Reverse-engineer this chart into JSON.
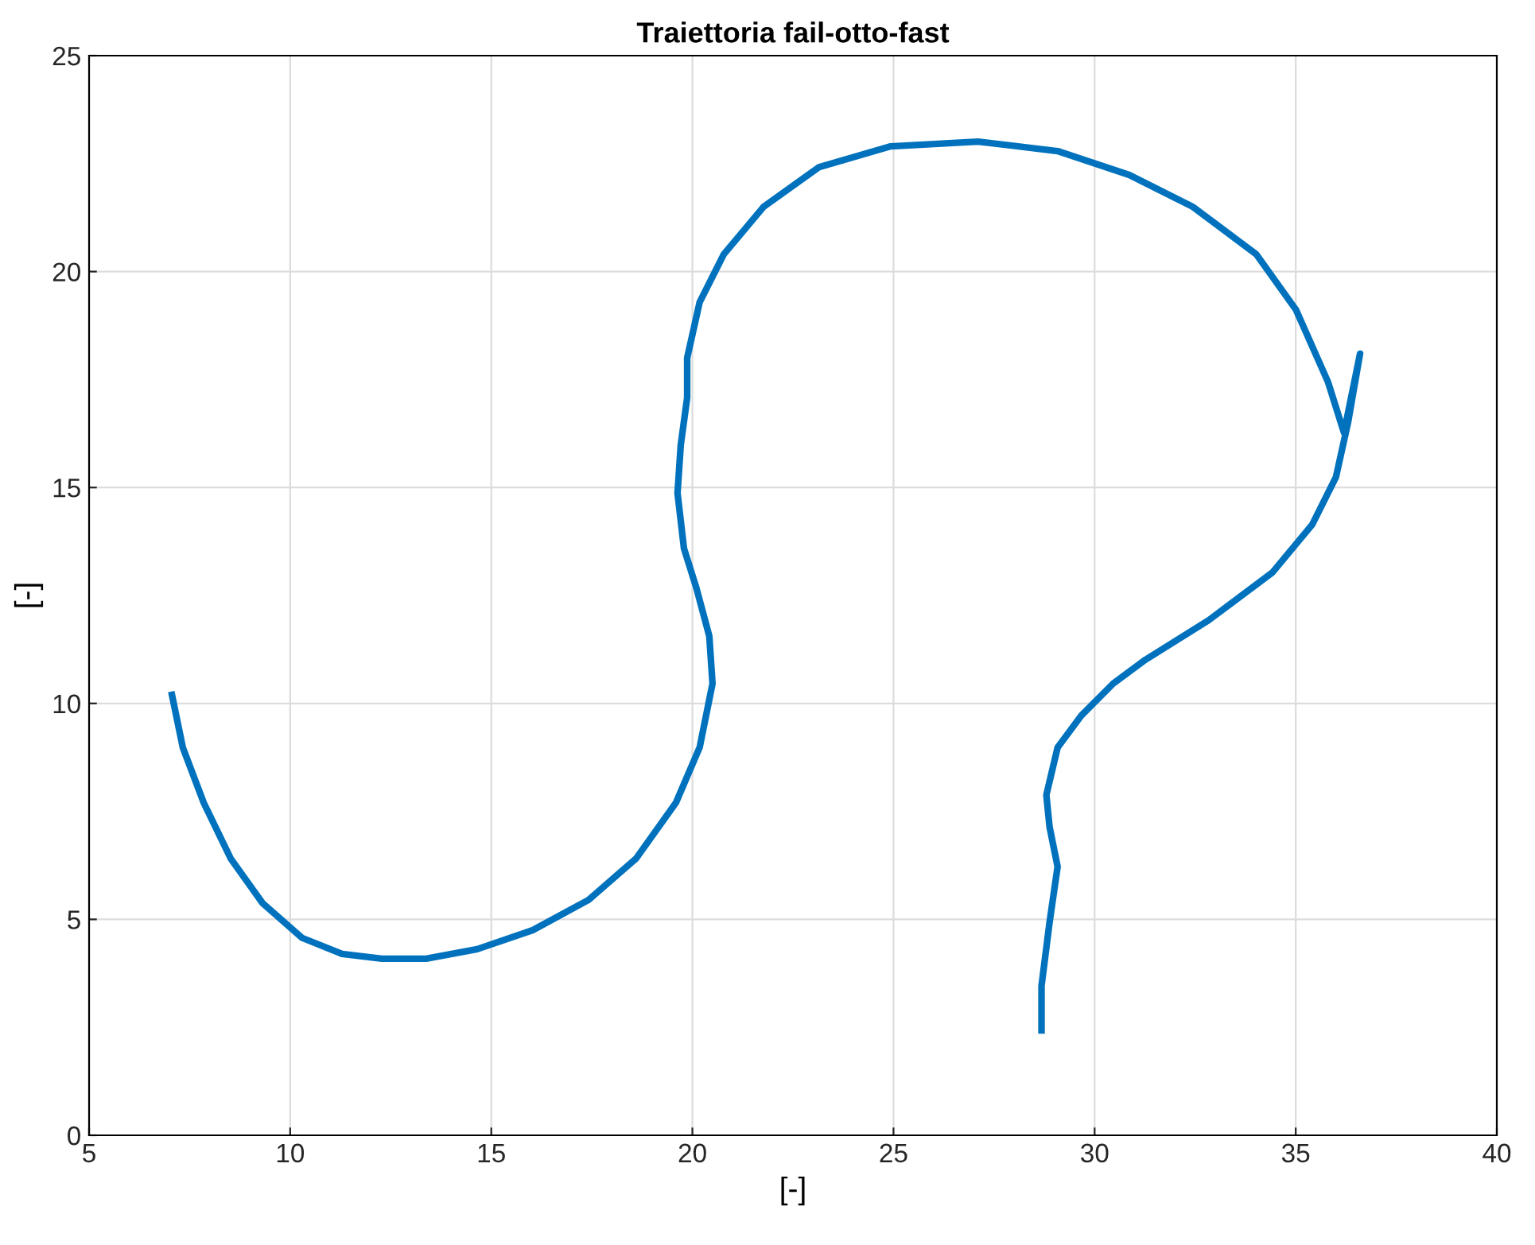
{
  "chart_data": {
    "type": "line",
    "title": "Traiettoria fail-otto-fast",
    "xlabel": "[-]",
    "ylabel": "[-]",
    "xlim": [
      5,
      40
    ],
    "ylim": [
      0,
      25
    ],
    "xticks": [
      5,
      10,
      15,
      20,
      25,
      30,
      35,
      40
    ],
    "yticks": [
      0,
      5,
      10,
      15,
      20,
      25
    ],
    "grid": true,
    "marker": "none",
    "line_style": "solid",
    "series": [
      {
        "color": "#0072bd",
        "x": [
          7.06,
          7.33,
          7.85,
          8.52,
          9.31,
          10.3,
          11.29,
          12.28,
          13.38,
          14.65,
          16.03,
          17.42,
          18.6,
          19.59,
          20.18,
          20.5,
          20.42,
          20.1,
          19.79,
          19.63,
          19.71,
          19.87,
          19.87,
          20.18,
          20.78,
          21.77,
          23.15,
          24.93,
          27.1,
          29.08,
          30.86,
          32.44,
          34.02,
          35.01,
          35.8,
          36.2,
          36.6,
          36.3,
          36.0,
          35.41,
          34.42,
          32.84,
          31.26,
          30.46,
          29.67,
          29.08,
          28.8,
          28.88,
          29.08,
          28.88,
          28.68,
          28.68
        ],
        "values": [
          10.2,
          8.98,
          7.7,
          6.41,
          5.38,
          4.57,
          4.2,
          4.09,
          4.09,
          4.31,
          4.75,
          5.45,
          6.41,
          7.7,
          8.98,
          10.46,
          11.56,
          12.67,
          13.59,
          14.87,
          15.98,
          17.08,
          18.0,
          19.29,
          20.4,
          21.5,
          22.42,
          22.9,
          23.01,
          22.79,
          22.24,
          21.5,
          20.4,
          19.11,
          17.45,
          16.27,
          18.1,
          16.5,
          15.24,
          14.14,
          13.03,
          11.93,
          11.01,
          10.46,
          9.72,
          8.98,
          7.88,
          7.14,
          6.22,
          4.93,
          3.46,
          2.43
        ]
      }
    ]
  }
}
